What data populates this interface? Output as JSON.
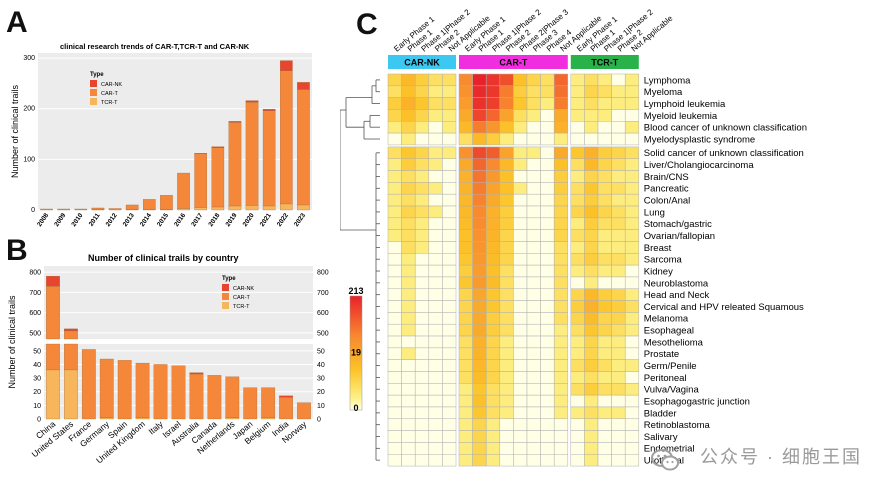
{
  "panels": {
    "a": "A",
    "b": "B",
    "c": "C"
  },
  "chart_data": [
    {
      "type": "bar",
      "stacked": true,
      "title": "clinical research trends of CAR-T,TCR-T and CAR-NK",
      "ylabel": "Number of clinical trails",
      "xlabel": "",
      "ylim": [
        0,
        310
      ],
      "yticks": [
        0,
        100,
        200,
        300
      ],
      "categories": [
        "2008",
        "2009",
        "2010",
        "2011",
        "2012",
        "2013",
        "2014",
        "2015",
        "2016",
        "2017",
        "2018",
        "2019",
        "2020",
        "2021",
        "2022",
        "2023"
      ],
      "legend": {
        "title": "Type",
        "position": "top-left",
        "items": [
          "CAR-NK",
          "CAR-T",
          "TCR-T"
        ]
      },
      "colors": {
        "TCR-T": "#f7b55c",
        "CAR-T": "#f4873a",
        "CAR-NK": "#e8452f"
      },
      "grid": true,
      "series": [
        {
          "name": "TCR-T",
          "values": [
            0,
            0,
            0,
            1,
            0,
            1,
            1,
            1,
            3,
            5,
            6,
            8,
            9,
            8,
            12,
            10
          ]
        },
        {
          "name": "CAR-T",
          "values": [
            2,
            2,
            2,
            3,
            3,
            9,
            20,
            28,
            70,
            106,
            117,
            165,
            204,
            188,
            263,
            228
          ]
        },
        {
          "name": "CAR-NK",
          "values": [
            0,
            0,
            0,
            0,
            0,
            0,
            0,
            0,
            0,
            1,
            2,
            2,
            3,
            3,
            20,
            14
          ]
        }
      ]
    },
    {
      "type": "bar",
      "stacked": true,
      "axis_break": true,
      "title": "Number of clinical trails by country",
      "ylabel": "Number of clinical trails",
      "xlabel": "",
      "upper_yticks": [
        500,
        600,
        700,
        800
      ],
      "lower_yticks": [
        0,
        10,
        20,
        30,
        40,
        50
      ],
      "categories": [
        "China",
        "United States",
        "France",
        "Germany",
        "Spain",
        "United Kingdom",
        "Italy",
        "Israel",
        "Australia",
        "Canada",
        "Netherlands",
        "Japan",
        "Belgium",
        "India",
        "Norway"
      ],
      "legend": {
        "title": "Type",
        "position": "top-right",
        "items": [
          "CAR-NK",
          "CAR-T",
          "TCR-T"
        ]
      },
      "colors": {
        "TCR-T": "#f7b55c",
        "CAR-T": "#f4873a",
        "CAR-NK": "#e8452f"
      },
      "grid": true,
      "series": [
        {
          "name": "TCR-T",
          "values": [
            36,
            36,
            0,
            1,
            0,
            1,
            0,
            0,
            0,
            0,
            1,
            0,
            1,
            0,
            0
          ]
        },
        {
          "name": "CAR-T",
          "values": [
            694,
            474,
            51,
            43,
            43,
            40,
            40,
            39,
            33,
            32,
            30,
            23,
            22,
            16,
            12
          ]
        },
        {
          "name": "CAR-NK",
          "values": [
            50,
            10,
            0,
            0,
            0,
            0,
            0,
            0,
            1,
            0,
            0,
            0,
            0,
            1,
            0
          ]
        }
      ]
    },
    {
      "type": "heatmap",
      "scale": {
        "max": 213,
        "mid": 19,
        "min": 0,
        "colors": [
          "#ffffe6",
          "#fdf28b",
          "#fcc428",
          "#f8882f",
          "#e8212a"
        ]
      },
      "groups": [
        {
          "name": "CAR-NK",
          "color": "#3cc8f0",
          "columns": [
            "Early Phase 1",
            "Phase 1",
            "Phase 1|Phase 2",
            "Phase 2",
            "Not Applicable"
          ]
        },
        {
          "name": "CAR-T",
          "color": "#f02ee0",
          "columns": [
            "Early Phase 1",
            "Phase 1",
            "Phase 1|Phase 2",
            "Phase 2",
            "Phase 2|Phase 3",
            "Phase 3",
            "Phase 4",
            "Not Applicable"
          ]
        },
        {
          "name": "TCR-T",
          "color": "#2ab24a",
          "columns": [
            "Early Phase 1",
            "Phase 1",
            "Phase 1|Phase 2",
            "Phase 2",
            "Not Applicable"
          ]
        }
      ],
      "rows": [
        "Lymphoma",
        "Myeloma",
        "Lymphoid leukemia",
        "Myeloid leukemia",
        "Blood cancer of unknown classification",
        "Myelodysplastic syndrome",
        "Solid cancer of unknown classification",
        "Liver/Cholangiocarcinoma",
        "Brain/CNS",
        "Pancreatic",
        "Colon/Anal",
        "Lung",
        "Stomach/gastric",
        "Ovarian/fallopian",
        "Breast",
        "Sarcoma",
        "Kidney",
        "Neuroblastoma",
        "Head and Neck",
        "Cervical and HPV releated Squamous",
        "Melanoma",
        "Esophageal",
        "Mesothelioma",
        "Prostate",
        "Germ/Penile",
        "Peritoneal",
        "Vulva/Vagina",
        "Esophagogastric junction",
        "Bladder",
        "Retinoblastoma",
        "Salivary",
        "Endometrial",
        "Urothelial"
      ],
      "values": [
        [
          3,
          8,
          4,
          2,
          2,
          30,
          213,
          150,
          90,
          6,
          3,
          2,
          60,
          1,
          2,
          1,
          0,
          1
        ],
        [
          2,
          6,
          3,
          1,
          1,
          25,
          180,
          140,
          40,
          4,
          2,
          2,
          50,
          1,
          3,
          2,
          1,
          1
        ],
        [
          4,
          10,
          5,
          2,
          2,
          18,
          160,
          120,
          35,
          5,
          2,
          1,
          40,
          1,
          2,
          1,
          1,
          1
        ],
        [
          3,
          6,
          3,
          1,
          1,
          12,
          110,
          60,
          15,
          2,
          1,
          0,
          12,
          1,
          1,
          1,
          0,
          0
        ],
        [
          1,
          3,
          1,
          0,
          1,
          8,
          40,
          22,
          6,
          1,
          0,
          0,
          10,
          0,
          1,
          0,
          0,
          1
        ],
        [
          0,
          1,
          0,
          0,
          0,
          2,
          8,
          4,
          1,
          0,
          0,
          0,
          1,
          0,
          0,
          0,
          0,
          0
        ],
        [
          2,
          5,
          3,
          1,
          1,
          25,
          100,
          70,
          15,
          1,
          1,
          0,
          12,
          5,
          10,
          4,
          3,
          2
        ],
        [
          1,
          4,
          2,
          1,
          0,
          12,
          60,
          30,
          8,
          1,
          0,
          0,
          6,
          2,
          8,
          3,
          2,
          1
        ],
        [
          1,
          2,
          1,
          0,
          0,
          10,
          45,
          20,
          6,
          0,
          0,
          0,
          4,
          1,
          3,
          2,
          1,
          1
        ],
        [
          1,
          3,
          2,
          1,
          0,
          9,
          40,
          15,
          6,
          1,
          0,
          0,
          4,
          2,
          5,
          2,
          2,
          1
        ],
        [
          1,
          2,
          1,
          0,
          0,
          8,
          35,
          12,
          5,
          0,
          0,
          0,
          3,
          2,
          4,
          2,
          1,
          1
        ],
        [
          1,
          3,
          2,
          1,
          0,
          8,
          30,
          10,
          4,
          0,
          0,
          0,
          3,
          3,
          6,
          3,
          2,
          1
        ],
        [
          1,
          2,
          1,
          0,
          0,
          7,
          28,
          10,
          4,
          0,
          0,
          0,
          3,
          1,
          4,
          2,
          2,
          1
        ],
        [
          1,
          2,
          1,
          0,
          0,
          6,
          25,
          9,
          3,
          0,
          0,
          0,
          3,
          2,
          3,
          1,
          1,
          1
        ],
        [
          0,
          2,
          1,
          0,
          0,
          6,
          22,
          8,
          3,
          0,
          0,
          0,
          2,
          1,
          3,
          1,
          1,
          1
        ],
        [
          0,
          1,
          0,
          0,
          0,
          5,
          20,
          7,
          3,
          0,
          0,
          0,
          2,
          2,
          4,
          2,
          2,
          1
        ],
        [
          0,
          1,
          0,
          0,
          0,
          4,
          18,
          6,
          2,
          0,
          0,
          0,
          2,
          1,
          2,
          1,
          1,
          0
        ],
        [
          0,
          1,
          0,
          0,
          0,
          5,
          19,
          7,
          2,
          0,
          0,
          0,
          2,
          0,
          1,
          0,
          0,
          0
        ],
        [
          0,
          1,
          0,
          0,
          0,
          3,
          14,
          5,
          2,
          0,
          0,
          0,
          2,
          3,
          8,
          4,
          3,
          1
        ],
        [
          0,
          1,
          0,
          0,
          0,
          3,
          12,
          5,
          2,
          0,
          0,
          0,
          2,
          4,
          10,
          5,
          4,
          2
        ],
        [
          0,
          1,
          0,
          0,
          0,
          3,
          12,
          4,
          2,
          0,
          0,
          0,
          2,
          3,
          7,
          3,
          3,
          1
        ],
        [
          0,
          1,
          0,
          0,
          0,
          3,
          12,
          4,
          2,
          0,
          0,
          0,
          1,
          2,
          5,
          3,
          2,
          1
        ],
        [
          0,
          0,
          0,
          0,
          0,
          2,
          10,
          3,
          1,
          0,
          0,
          0,
          1,
          1,
          3,
          1,
          1,
          0
        ],
        [
          0,
          1,
          0,
          0,
          0,
          2,
          9,
          3,
          1,
          0,
          0,
          0,
          1,
          1,
          3,
          1,
          1,
          0
        ],
        [
          0,
          0,
          0,
          0,
          0,
          2,
          8,
          3,
          1,
          0,
          0,
          0,
          1,
          2,
          4,
          2,
          1,
          1
        ],
        [
          0,
          0,
          0,
          0,
          0,
          2,
          7,
          3,
          1,
          0,
          0,
          0,
          1,
          1,
          2,
          1,
          1,
          0
        ],
        [
          0,
          0,
          0,
          0,
          0,
          1,
          5,
          2,
          1,
          0,
          0,
          0,
          1,
          2,
          4,
          2,
          2,
          1
        ],
        [
          0,
          0,
          0,
          0,
          0,
          1,
          6,
          2,
          1,
          0,
          0,
          0,
          1,
          0,
          1,
          0,
          0,
          0
        ],
        [
          0,
          0,
          0,
          0,
          0,
          1,
          5,
          2,
          1,
          0,
          0,
          0,
          1,
          1,
          2,
          1,
          1,
          0
        ],
        [
          0,
          0,
          0,
          0,
          0,
          1,
          3,
          1,
          0,
          0,
          0,
          0,
          0,
          0,
          1,
          0,
          0,
          0
        ],
        [
          0,
          0,
          0,
          0,
          0,
          1,
          3,
          1,
          0,
          0,
          0,
          0,
          0,
          0,
          1,
          0,
          0,
          0
        ],
        [
          0,
          0,
          0,
          0,
          0,
          1,
          3,
          1,
          0,
          0,
          0,
          0,
          0,
          0,
          1,
          0,
          0,
          0
        ],
        [
          0,
          0,
          0,
          0,
          0,
          1,
          3,
          1,
          0,
          0,
          0,
          0,
          0,
          0,
          1,
          0,
          0,
          0
        ]
      ]
    }
  ],
  "watermark": {
    "text": "公众号 · 细胞王国",
    "icon": "wechat-icon"
  }
}
